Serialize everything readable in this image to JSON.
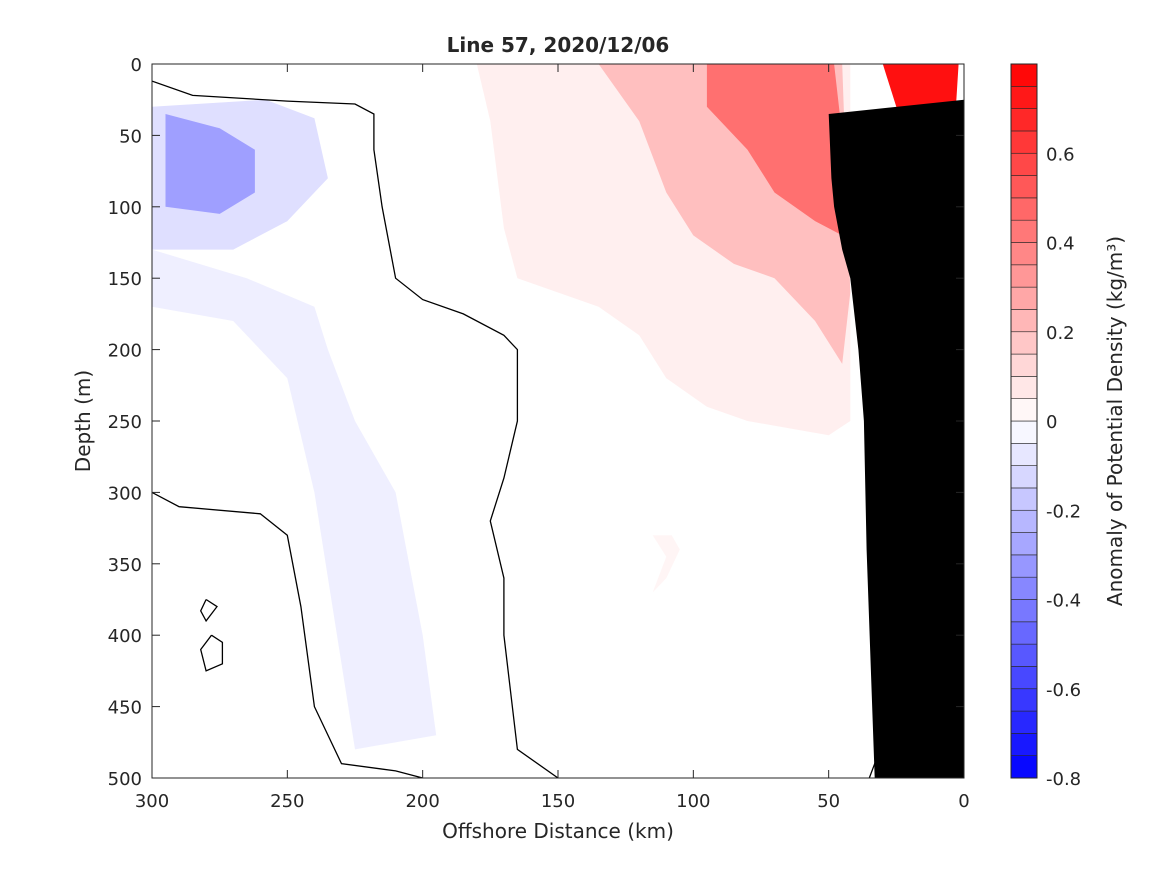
{
  "chart_data": {
    "type": "heatmap",
    "title": "Line 57, 2020/12/06",
    "xlabel": "Offshore Distance (km)",
    "ylabel": "Depth (m)",
    "xlim": [
      300,
      0
    ],
    "ylim": [
      0,
      500
    ],
    "x_direction": "reversed",
    "y_direction": "reversed",
    "xticks": [
      "300",
      "250",
      "200",
      "150",
      "100",
      "50",
      "0"
    ],
    "yticks": [
      "0",
      "50",
      "100",
      "150",
      "200",
      "250",
      "300",
      "350",
      "400",
      "450",
      "500"
    ],
    "colorbar": {
      "label": "Anomaly of Potential Density (kg/m³)",
      "limits": [
        -0.8,
        0.8
      ],
      "ticks": [
        "-0.8",
        "-0.6",
        "-0.4",
        "-0.2",
        "0",
        "0.2",
        "0.4",
        "0.6"
      ],
      "colormap": "blue-white-red",
      "levels_step": 0.05,
      "negative_color": "#0000ff",
      "positive_color": "#ff0000",
      "zero_color": "#ffffff"
    },
    "bathymetry": {
      "color": "#000000",
      "boundary": [
        [
          33,
          500
        ],
        [
          36,
          340
        ],
        [
          37,
          250
        ],
        [
          39,
          200
        ],
        [
          42,
          150
        ],
        [
          45,
          130
        ],
        [
          48,
          100
        ],
        [
          49,
          80
        ],
        [
          50,
          35
        ]
      ]
    },
    "fields": [
      {
        "name": "surface-positive",
        "value": 0.05,
        "polygon": [
          [
            295,
            0
          ],
          [
            180,
            0
          ],
          [
            175,
            40
          ],
          [
            170,
            115
          ],
          [
            165,
            150
          ],
          [
            150,
            160
          ],
          [
            135,
            170
          ],
          [
            120,
            190
          ],
          [
            110,
            220
          ],
          [
            95,
            240
          ],
          [
            80,
            250
          ],
          [
            50,
            260
          ],
          [
            42,
            250
          ],
          [
            42,
            0
          ]
        ]
      },
      {
        "name": "nearshore-positive",
        "value": 0.2,
        "polygon": [
          [
            135,
            0
          ],
          [
            120,
            40
          ],
          [
            110,
            90
          ],
          [
            100,
            120
          ],
          [
            85,
            140
          ],
          [
            70,
            150
          ],
          [
            55,
            180
          ],
          [
            45,
            210
          ],
          [
            42,
            160
          ],
          [
            45,
            0
          ]
        ]
      },
      {
        "name": "nearshore-strong",
        "value": 0.45,
        "polygon": [
          [
            95,
            0
          ],
          [
            95,
            30
          ],
          [
            80,
            60
          ],
          [
            70,
            90
          ],
          [
            55,
            110
          ],
          [
            45,
            120
          ],
          [
            45,
            50
          ],
          [
            48,
            0
          ]
        ]
      },
      {
        "name": "coastal-max",
        "value": 0.75,
        "polygon": [
          [
            30,
            0
          ],
          [
            25,
            30
          ],
          [
            18,
            60
          ],
          [
            10,
            80
          ],
          [
            4,
            60
          ],
          [
            2,
            0
          ]
        ]
      },
      {
        "name": "surface-negative",
        "value": -0.1,
        "polygon": [
          [
            300,
            30
          ],
          [
            258,
            25
          ],
          [
            240,
            38
          ],
          [
            235,
            80
          ],
          [
            250,
            110
          ],
          [
            270,
            130
          ],
          [
            300,
            130
          ]
        ]
      },
      {
        "name": "subsurface-negative-core",
        "value": -0.3,
        "polygon": [
          [
            295,
            35
          ],
          [
            275,
            45
          ],
          [
            262,
            60
          ],
          [
            262,
            90
          ],
          [
            275,
            105
          ],
          [
            295,
            100
          ]
        ]
      },
      {
        "name": "deep-negative-tongue",
        "value": -0.05,
        "polygon": [
          [
            300,
            130
          ],
          [
            265,
            150
          ],
          [
            240,
            170
          ],
          [
            235,
            200
          ],
          [
            225,
            250
          ],
          [
            210,
            300
          ],
          [
            205,
            350
          ],
          [
            200,
            400
          ],
          [
            195,
            470
          ],
          [
            225,
            480
          ],
          [
            230,
            420
          ],
          [
            240,
            300
          ],
          [
            250,
            220
          ],
          [
            270,
            180
          ],
          [
            300,
            170
          ]
        ]
      },
      {
        "name": "deep-weak-positive",
        "value": 0.03,
        "polygon": [
          [
            115,
            330
          ],
          [
            110,
            345
          ],
          [
            115,
            370
          ],
          [
            110,
            360
          ],
          [
            105,
            340
          ],
          [
            108,
            330
          ]
        ]
      }
    ],
    "contour_lines": [
      {
        "level": 0,
        "points": [
          [
            300,
            12
          ],
          [
            285,
            22
          ],
          [
            250,
            26
          ],
          [
            225,
            28
          ],
          [
            218,
            35
          ],
          [
            218,
            60
          ],
          [
            215,
            100
          ],
          [
            210,
            150
          ],
          [
            200,
            165
          ],
          [
            185,
            175
          ],
          [
            170,
            190
          ],
          [
            165,
            200
          ],
          [
            165,
            250
          ],
          [
            170,
            290
          ],
          [
            175,
            320
          ],
          [
            170,
            360
          ],
          [
            170,
            400
          ],
          [
            165,
            480
          ],
          [
            150,
            500
          ]
        ]
      },
      {
        "level": 0,
        "points": [
          [
            300,
            300
          ],
          [
            290,
            310
          ],
          [
            260,
            315
          ],
          [
            250,
            330
          ],
          [
            245,
            380
          ],
          [
            240,
            450
          ],
          [
            230,
            490
          ],
          [
            210,
            495
          ],
          [
            200,
            500
          ]
        ]
      },
      {
        "level": 0,
        "points": [
          [
            280,
            375
          ],
          [
            276,
            380
          ],
          [
            280,
            390
          ],
          [
            282,
            383
          ],
          [
            280,
            375
          ]
        ]
      },
      {
        "level": 0,
        "points": [
          [
            278,
            400
          ],
          [
            282,
            410
          ],
          [
            280,
            425
          ],
          [
            274,
            420
          ],
          [
            274,
            405
          ],
          [
            278,
            400
          ]
        ]
      },
      {
        "level": 0,
        "points": [
          [
            35,
            500
          ],
          [
            33,
            490
          ],
          [
            32,
            485
          ]
        ]
      }
    ]
  }
}
